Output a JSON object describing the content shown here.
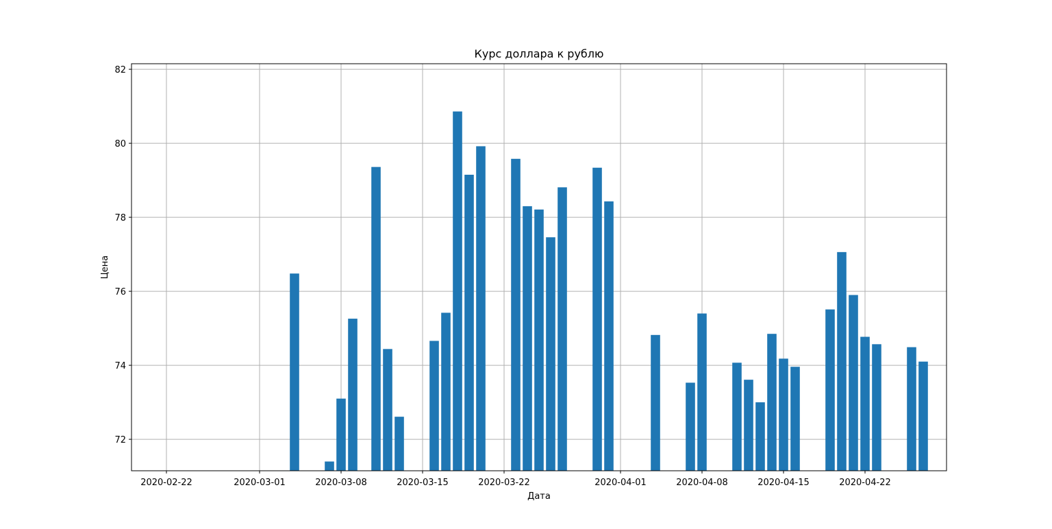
{
  "chart_data": {
    "type": "bar",
    "title": "Курс доллара к рублю",
    "xlabel": "Дата",
    "ylabel": "Цена",
    "ylim": [
      71.15,
      82.15
    ],
    "xlim": [
      "2020-02-19",
      "2020-04-29"
    ],
    "grid": true,
    "color": "#1f77b4",
    "x_ticks": [
      "2020-02-22",
      "2020-03-01",
      "2020-03-08",
      "2020-03-15",
      "2020-03-22",
      "2020-04-01",
      "2020-04-08",
      "2020-04-15",
      "2020-04-22"
    ],
    "y_ticks": [
      72,
      74,
      76,
      78,
      80,
      82
    ],
    "x": [
      "2020-03-04",
      "2020-03-07",
      "2020-03-08",
      "2020-03-09",
      "2020-03-11",
      "2020-03-12",
      "2020-03-13",
      "2020-03-16",
      "2020-03-17",
      "2020-03-18",
      "2020-03-19",
      "2020-03-20",
      "2020-03-23",
      "2020-03-24",
      "2020-03-25",
      "2020-03-26",
      "2020-03-27",
      "2020-03-30",
      "2020-03-31",
      "2020-04-04",
      "2020-04-07",
      "2020-04-08",
      "2020-04-11",
      "2020-04-12",
      "2020-04-13",
      "2020-04-14",
      "2020-04-15",
      "2020-04-16",
      "2020-04-19",
      "2020-04-20",
      "2020-04-21",
      "2020-04-22",
      "2020-04-23",
      "2020-04-26",
      "2020-04-27"
    ],
    "values": [
      76.48,
      71.4,
      73.1,
      75.26,
      79.36,
      74.44,
      72.61,
      74.66,
      75.42,
      80.86,
      79.15,
      79.92,
      79.58,
      78.3,
      78.21,
      77.46,
      78.81,
      79.34,
      78.43,
      74.82,
      73.53,
      75.4,
      74.07,
      73.61,
      73.0,
      74.85,
      74.18,
      73.96,
      75.51,
      77.06,
      75.9,
      74.77,
      74.57,
      74.49,
      74.1
    ]
  }
}
